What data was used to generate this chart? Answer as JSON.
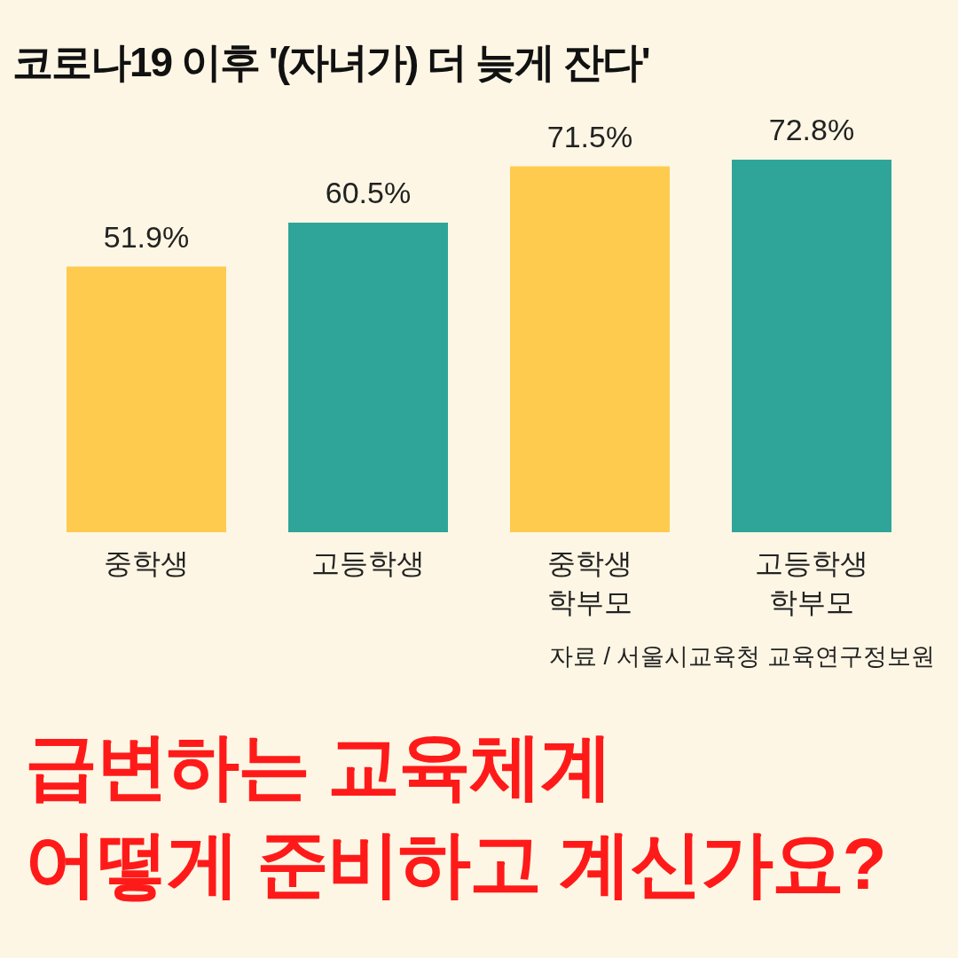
{
  "chart_data": {
    "type": "bar",
    "title": "코로나19 이후 '(자녀가) 더 늦게 잔다'",
    "categories": [
      "중학생",
      "고등학생",
      "중학생\n학부모",
      "고등학생\n학부모"
    ],
    "values": [
      51.9,
      60.5,
      71.5,
      72.8
    ],
    "colors": [
      "#fecb4e",
      "#2fa59a",
      "#fecb4e",
      "#2fa59a"
    ],
    "value_labels": [
      "51.9%",
      "60.5%",
      "71.5%",
      "72.8%"
    ],
    "tick_labels": "x",
    "grid": false,
    "annotations": [
      "자료 / 서울시교육청 교육연구정보원",
      "급변하는 교육체계",
      "어떻게 준비하고 계신가요?"
    ]
  }
}
